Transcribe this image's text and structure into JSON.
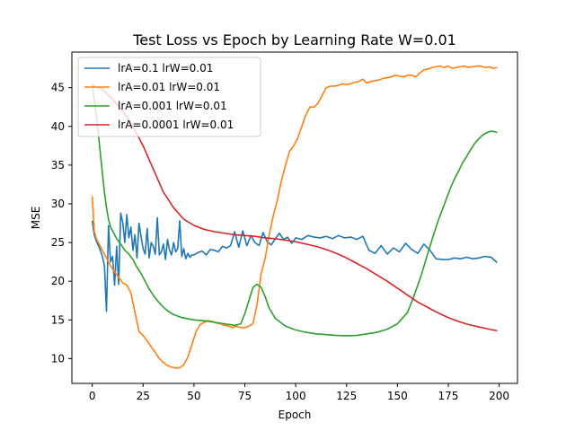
{
  "chart_data": {
    "type": "line",
    "title": "Test Loss vs Epoch by Learning Rate W=0.01",
    "xlabel": "Epoch",
    "ylabel": "MSE",
    "xlim": [
      -10,
      209
    ],
    "ylim": [
      6.8,
      49.6
    ],
    "xticks": [
      0,
      25,
      50,
      75,
      100,
      125,
      150,
      175,
      200
    ],
    "yticks": [
      10,
      15,
      20,
      25,
      30,
      35,
      40,
      45
    ],
    "grid": false,
    "legend_position": "top-left",
    "series": [
      {
        "name": "lrA=0.1 lrW=0.01",
        "color": "#1f77b4",
        "x": [
          0,
          1,
          2,
          3,
          4,
          5,
          6,
          7,
          8,
          9,
          10,
          11,
          12,
          13,
          14,
          15,
          16,
          17,
          18,
          19,
          20,
          21,
          22,
          23,
          24,
          25,
          26,
          27,
          28,
          29,
          30,
          31,
          32,
          33,
          34,
          35,
          36,
          37,
          38,
          39,
          40,
          41,
          42,
          43,
          44,
          45,
          46,
          47,
          48,
          49,
          50,
          52,
          54,
          56,
          58,
          60,
          62,
          64,
          66,
          68,
          70,
          72,
          74,
          76,
          78,
          80,
          82,
          84,
          86,
          88,
          90,
          92,
          94,
          96,
          98,
          100,
          103,
          106,
          109,
          112,
          115,
          118,
          121,
          124,
          127,
          130,
          133,
          136,
          139,
          142,
          145,
          148,
          151,
          154,
          157,
          160,
          163,
          166,
          169,
          172,
          175,
          178,
          181,
          184,
          187,
          190,
          193,
          196,
          199
        ],
        "y": [
          27.8,
          26.0,
          25.2,
          24.6,
          24.0,
          23.2,
          22.0,
          16.1,
          27.2,
          22.5,
          23.2,
          19.5,
          24.5,
          19.6,
          28.8,
          27.6,
          25.0,
          28.6,
          25.6,
          27.0,
          24.0,
          26.0,
          23.0,
          27.5,
          25.8,
          24.2,
          23.5,
          26.8,
          23.0,
          25.0,
          24.5,
          23.5,
          28.2,
          23.4,
          23.8,
          24.8,
          22.8,
          25.4,
          24.0,
          23.4,
          25.0,
          23.8,
          24.2,
          27.8,
          23.2,
          24.2,
          22.9,
          23.6,
          23.1,
          23.4,
          23.4,
          23.7,
          23.9,
          23.4,
          24.1,
          24.0,
          23.8,
          24.5,
          24.3,
          24.6,
          26.4,
          24.4,
          26.5,
          24.6,
          25.9,
          25.0,
          24.6,
          26.3,
          25.1,
          24.7,
          25.5,
          26.2,
          25.4,
          25.7,
          24.9,
          25.6,
          25.4,
          25.9,
          25.7,
          25.6,
          25.8,
          25.5,
          25.9,
          25.6,
          25.7,
          25.4,
          25.8,
          24.0,
          23.6,
          24.6,
          23.5,
          24.3,
          23.8,
          24.9,
          24.1,
          23.6,
          24.8,
          24.0,
          22.9,
          22.8,
          22.8,
          23.0,
          22.9,
          23.1,
          22.9,
          23.0,
          23.2,
          23.1,
          22.4
        ]
      },
      {
        "name": "lrA=0.01 lrW=0.01",
        "color": "#ff7f0e",
        "x": [
          0,
          1,
          2,
          3,
          5,
          7,
          9,
          11,
          13,
          15,
          17,
          19,
          21,
          23,
          25,
          27,
          29,
          31,
          33,
          35,
          37,
          39,
          41,
          43,
          45,
          47,
          49,
          51,
          53,
          55,
          57,
          59,
          61,
          63,
          65,
          67,
          69,
          71,
          73,
          75,
          77,
          79,
          81,
          83,
          85,
          87,
          89,
          91,
          93,
          95,
          97,
          99,
          101,
          103,
          105,
          107,
          109,
          111,
          113,
          115,
          117,
          119,
          121,
          123,
          125,
          127,
          129,
          131,
          133,
          135,
          137,
          139,
          141,
          143,
          145,
          147,
          149,
          151,
          153,
          155,
          157,
          159,
          161,
          163,
          165,
          167,
          169,
          171,
          173,
          175,
          177,
          179,
          181,
          183,
          185,
          187,
          189,
          191,
          193,
          195,
          197,
          199
        ],
        "y": [
          31.0,
          26.5,
          25.5,
          25.0,
          24.0,
          23.0,
          22.0,
          21.2,
          20.5,
          19.8,
          19.5,
          18.5,
          16.0,
          13.5,
          13.0,
          12.3,
          11.5,
          10.8,
          10.0,
          9.5,
          9.1,
          8.9,
          8.8,
          8.8,
          9.2,
          10.2,
          11.8,
          13.5,
          14.4,
          14.7,
          14.9,
          14.8,
          14.6,
          14.5,
          14.3,
          14.2,
          14.0,
          14.2,
          14.0,
          14.0,
          14.2,
          14.5,
          17.0,
          21.0,
          23.0,
          26.0,
          28.5,
          30.5,
          33.0,
          35.0,
          36.8,
          37.5,
          38.5,
          40.0,
          41.5,
          42.5,
          42.5,
          43.0,
          44.0,
          45.0,
          45.2,
          45.2,
          45.3,
          45.5,
          45.4,
          45.5,
          45.7,
          45.8,
          46.1,
          45.6,
          45.8,
          45.9,
          46.0,
          46.2,
          46.3,
          46.4,
          46.6,
          46.5,
          46.4,
          46.6,
          46.6,
          46.4,
          46.9,
          47.3,
          47.4,
          47.6,
          47.7,
          47.8,
          47.6,
          47.8,
          47.5,
          47.6,
          47.7,
          47.8,
          47.6,
          47.7,
          47.8,
          47.8,
          47.6,
          47.7,
          47.5,
          47.6
        ]
      },
      {
        "name": "lrA=0.001 lrW=0.01",
        "color": "#2ca02c",
        "x": [
          0,
          1,
          2,
          3,
          4,
          5,
          6,
          7,
          8,
          9,
          10,
          12,
          14,
          16,
          18,
          20,
          22,
          24,
          26,
          28,
          30,
          32,
          34,
          36,
          38,
          40,
          42,
          44,
          46,
          48,
          50,
          55,
          60,
          65,
          70,
          73,
          75,
          77,
          79,
          81,
          83,
          85,
          87,
          90,
          95,
          100,
          105,
          110,
          115,
          120,
          125,
          130,
          135,
          140,
          145,
          150,
          155,
          158,
          160,
          162,
          164,
          166,
          168,
          170,
          172,
          174,
          176,
          178,
          180,
          182,
          184,
          186,
          188,
          190,
          192,
          194,
          196,
          198,
          199
        ],
        "y": [
          45.5,
          43.5,
          41.5,
          39.0,
          36.5,
          34.0,
          31.5,
          29.5,
          28.0,
          27.0,
          26.5,
          25.5,
          24.8,
          24.0,
          23.5,
          22.8,
          21.8,
          21.0,
          20.0,
          19.0,
          18.2,
          17.5,
          16.9,
          16.4,
          16.0,
          15.7,
          15.5,
          15.3,
          15.2,
          15.1,
          15.0,
          14.9,
          14.7,
          14.5,
          14.3,
          14.5,
          15.8,
          17.5,
          19.2,
          19.6,
          19.2,
          18.0,
          16.5,
          15.2,
          14.2,
          13.7,
          13.4,
          13.2,
          13.1,
          13.0,
          12.95,
          13.0,
          13.2,
          13.4,
          13.8,
          14.5,
          16.0,
          18.0,
          19.5,
          21.0,
          22.8,
          24.5,
          26.2,
          27.8,
          29.2,
          30.6,
          32.0,
          33.2,
          34.2,
          35.3,
          36.1,
          37.0,
          37.8,
          38.4,
          38.9,
          39.2,
          39.4,
          39.3,
          39.2
        ]
      },
      {
        "name": "lrA=0.0001 lrW=0.01",
        "color": "#d62728",
        "x": [
          0,
          5,
          10,
          15,
          20,
          25,
          30,
          35,
          40,
          45,
          50,
          55,
          60,
          65,
          70,
          75,
          80,
          85,
          90,
          95,
          100,
          105,
          110,
          115,
          120,
          125,
          130,
          135,
          140,
          145,
          150,
          155,
          160,
          165,
          170,
          175,
          180,
          185,
          190,
          195,
          199
        ],
        "y": [
          45.3,
          44.8,
          43.5,
          42.0,
          40.0,
          37.5,
          34.5,
          31.5,
          29.5,
          28.0,
          27.2,
          26.7,
          26.4,
          26.2,
          26.0,
          25.9,
          25.8,
          25.6,
          25.5,
          25.3,
          25.1,
          24.8,
          24.5,
          24.1,
          23.6,
          23.0,
          22.3,
          21.6,
          20.8,
          20.0,
          19.1,
          18.2,
          17.3,
          16.6,
          15.9,
          15.3,
          14.8,
          14.4,
          14.1,
          13.8,
          13.6
        ]
      }
    ]
  }
}
